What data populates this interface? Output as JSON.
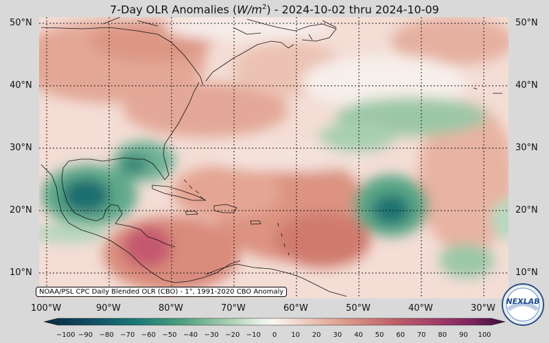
{
  "title_prefix": "7-Day OLR Anomalies (",
  "title_unit": "W/m",
  "title_sup": "2",
  "title_suffix": ") - 2024-10-02 thru 2024-10-09",
  "lat_labels": [
    "50°N",
    "40°N",
    "30°N",
    "20°N",
    "10°N"
  ],
  "lon_labels": [
    "100°W",
    "90°W",
    "80°W",
    "70°W",
    "60°W",
    "50°W",
    "40°W",
    "30°W"
  ],
  "credit": "NOAA/PSL CPC Daily Blended OLR (CBO) - 1°, 1991-2020 CBO Anomaly",
  "colorbar": {
    "ticks": [
      "−100",
      "−90",
      "−80",
      "−70",
      "−60",
      "−50",
      "−40",
      "−30",
      "−20",
      "−10",
      "0",
      "10",
      "20",
      "30",
      "40",
      "50",
      "60",
      "70",
      "80",
      "90",
      "100"
    ]
  },
  "logo_text": "NEXLAB",
  "colors": {
    "negative_strong": "#0a4a5a",
    "negative_mid": "#3f9a78",
    "neutral": "#f8f0ec",
    "positive_mid": "#d9887a",
    "positive_strong": "#7a1f5a"
  }
}
